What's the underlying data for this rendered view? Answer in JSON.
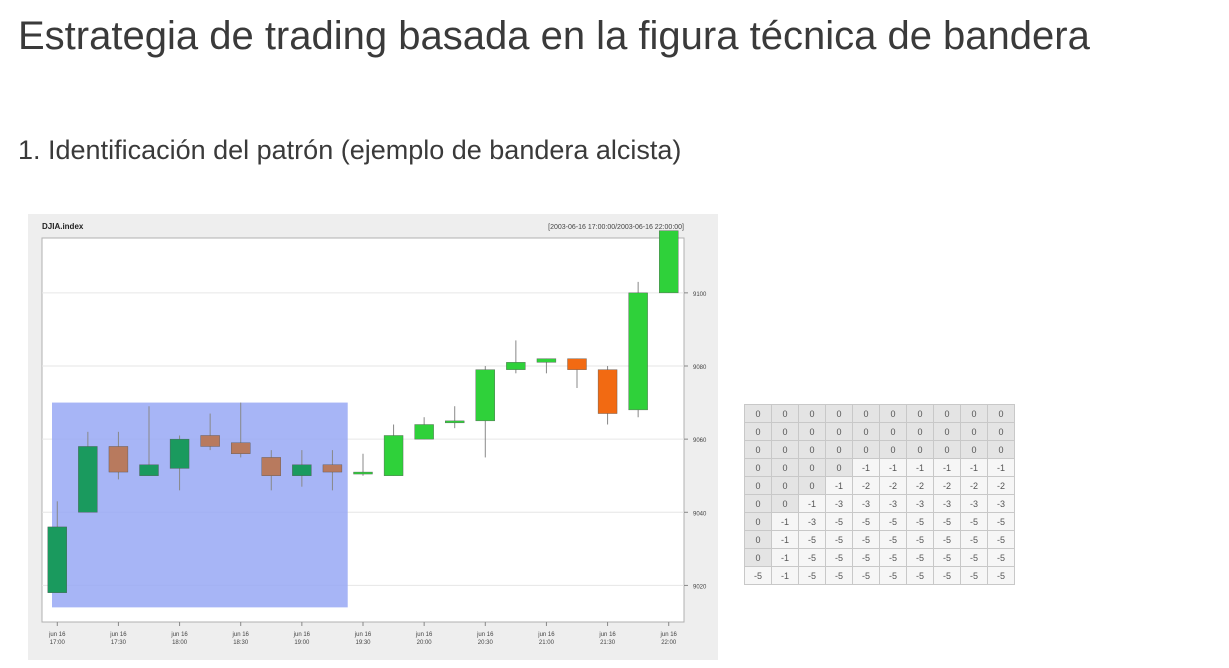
{
  "slide": {
    "title": "Estrategia de trading basada en la figura técnica de bandera",
    "subtitle": "1. Identificación del patrón (ejemplo de bandera alcista)"
  },
  "chart_data": {
    "type": "candlestick",
    "title": "DJIA.index",
    "range_label": "[2003-06-16 17:00:00/2003-06-16 22:00:00]",
    "ylim": [
      9010,
      9115
    ],
    "y_ticks": [
      9020,
      9040,
      9060,
      9080,
      9100
    ],
    "x_tick_labels": [
      [
        "jun 16",
        "17:00"
      ],
      [
        "jun 16",
        "17:30"
      ],
      [
        "jun 16",
        "18:00"
      ],
      [
        "jun 16",
        "18:30"
      ],
      [
        "jun 16",
        "19:00"
      ],
      [
        "jun 16",
        "19:30"
      ],
      [
        "jun 16",
        "20:00"
      ],
      [
        "jun 16",
        "20:30"
      ],
      [
        "jun 16",
        "21:00"
      ],
      [
        "jun 16",
        "21:30"
      ],
      [
        "jun 16",
        "22:00"
      ]
    ],
    "candles": [
      {
        "open": 9018,
        "high": 9043,
        "low": 9018,
        "close": 9036
      },
      {
        "open": 9040,
        "high": 9062,
        "low": 9040,
        "close": 9058
      },
      {
        "open": 9058,
        "high": 9062,
        "low": 9049,
        "close": 9051
      },
      {
        "open": 9050,
        "high": 9069,
        "low": 9050,
        "close": 9053
      },
      {
        "open": 9052,
        "high": 9061,
        "low": 9046,
        "close": 9060
      },
      {
        "open": 9061,
        "high": 9067,
        "low": 9057,
        "close": 9058
      },
      {
        "open": 9059,
        "high": 9070,
        "low": 9055,
        "close": 9056
      },
      {
        "open": 9055,
        "high": 9057,
        "low": 9046,
        "close": 9050
      },
      {
        "open": 9050,
        "high": 9057,
        "low": 9047,
        "close": 9053
      },
      {
        "open": 9053,
        "high": 9057,
        "low": 9046,
        "close": 9051
      },
      {
        "open": 9051,
        "high": 9056,
        "low": 9050,
        "close": 9051
      },
      {
        "open": 9050,
        "high": 9064,
        "low": 9050,
        "close": 9061
      },
      {
        "open": 9060,
        "high": 9066,
        "low": 9060,
        "close": 9064
      },
      {
        "open": 9065,
        "high": 9069,
        "low": 9063,
        "close": 9065
      },
      {
        "open": 9065,
        "high": 9080,
        "low": 9055,
        "close": 9079
      },
      {
        "open": 9079,
        "high": 9087,
        "low": 9078,
        "close": 9081
      },
      {
        "open": 9081,
        "high": 9082,
        "low": 9078,
        "close": 9082
      },
      {
        "open": 9082,
        "high": 9082,
        "low": 9074,
        "close": 9079
      },
      {
        "open": 9079,
        "high": 9080,
        "low": 9064,
        "close": 9067
      },
      {
        "open": 9068,
        "high": 9103,
        "low": 9066,
        "close": 9100
      },
      {
        "open": 9100,
        "high": 9117,
        "low": 9100,
        "close": 9117
      }
    ],
    "highlight": {
      "from_candle": 0,
      "to_candle": 9,
      "color": "#98a8f5"
    },
    "colors": {
      "up": "#2fd13a",
      "up_dark": "#1a9a5e",
      "down": "#b87a5e",
      "down_bright": "#f26a12",
      "wick": "#888888"
    }
  },
  "matrix": {
    "rows": [
      [
        "0",
        "0",
        "0",
        "0",
        "0",
        "0",
        "0",
        "0",
        "0",
        "0"
      ],
      [
        "0",
        "0",
        "0",
        "0",
        "0",
        "0",
        "0",
        "0",
        "0",
        "0"
      ],
      [
        "0",
        "0",
        "0",
        "0",
        "0",
        "0",
        "0",
        "0",
        "0",
        "0"
      ],
      [
        "0",
        "0",
        "0",
        "0",
        "-1",
        "-1",
        "-1",
        "-1",
        "-1",
        "-1"
      ],
      [
        "0",
        "0",
        "0",
        "-1",
        "-2",
        "-2",
        "-2",
        "-2",
        "-2",
        "-2"
      ],
      [
        "0",
        "0",
        "-1",
        "-3",
        "-3",
        "-3",
        "-3",
        "-3",
        "-3",
        "-3"
      ],
      [
        "0",
        "-1",
        "-3",
        "-5",
        "-5",
        "-5",
        "-5",
        "-5",
        "-5",
        "-5"
      ],
      [
        "0",
        "-1",
        "-5",
        "-5",
        "-5",
        "-5",
        "-5",
        "-5",
        "-5",
        "-5"
      ],
      [
        "0",
        "-1",
        "-5",
        "-5",
        "-5",
        "-5",
        "-5",
        "-5",
        "-5",
        "-5"
      ],
      [
        "-5",
        "-1",
        "-5",
        "-5",
        "-5",
        "-5",
        "-5",
        "-5",
        "-5",
        "-5"
      ]
    ]
  }
}
